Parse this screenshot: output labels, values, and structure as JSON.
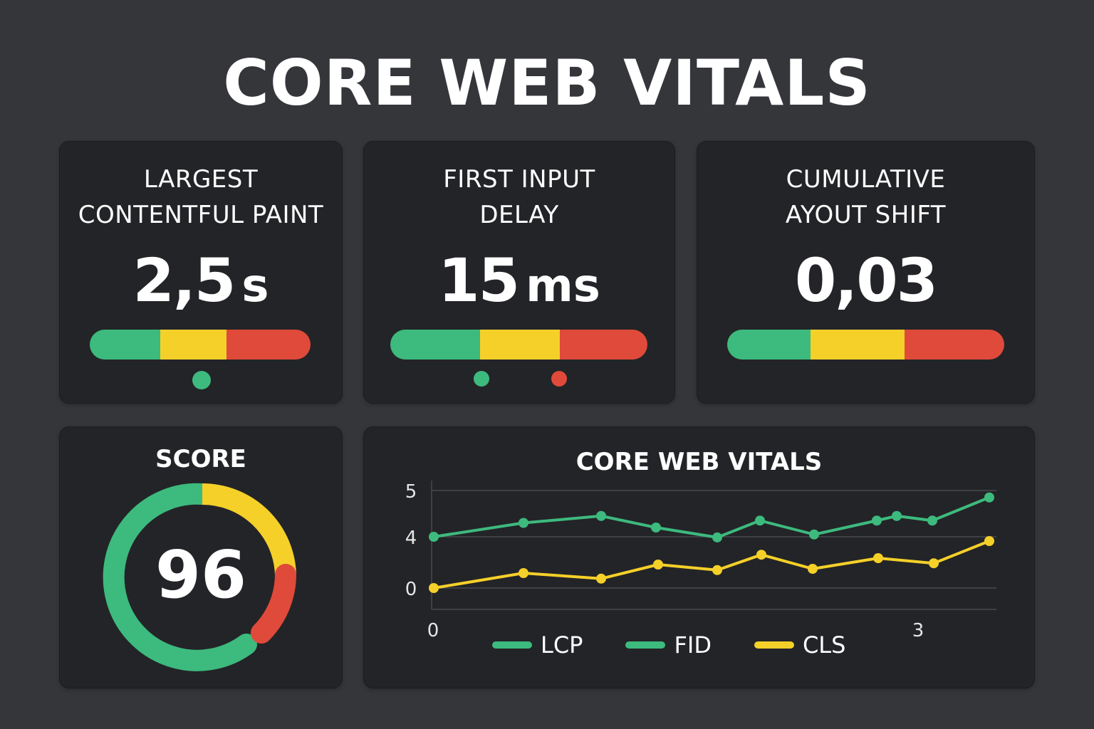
{
  "title": "CORE WEB VITALS",
  "colors": {
    "good": "#3dba7e",
    "needs_improvement": "#f5d029",
    "poor": "#e04a3a",
    "card": "#232427",
    "background": "#34363a"
  },
  "metrics": [
    {
      "title_line1": "LARGEST",
      "title_line2": "CONTENTFUL PAINT",
      "value": "2,5",
      "unit": "s",
      "dots": [
        "good"
      ]
    },
    {
      "title_line1": "FIRST INPUT",
      "title_line2": "DELAY",
      "value": "15",
      "unit": "ms",
      "dots": [
        "good",
        "poor"
      ]
    },
    {
      "title_line1": "CUMULATIVE",
      "title_line2": "AYOUT SHIFT",
      "value": "0,03",
      "unit": "",
      "dots": []
    }
  ],
  "score": {
    "title": "SCORE",
    "value": "96"
  },
  "chart": {
    "title": "CORE WEB VITALS",
    "legend": [
      "LCP",
      "FID",
      "CLS"
    ]
  },
  "chart_data": {
    "type": "line",
    "title": "CORE WEB VITALS",
    "y_tick_labels": [
      "5",
      "4",
      "0"
    ],
    "x_tick_labels": [
      "0",
      "3"
    ],
    "grid": true,
    "legend_placement": "bottom",
    "series": [
      {
        "name": "LCP",
        "color": "#3dba7e",
        "values": [
          4.0,
          4.3,
          4.45,
          4.2,
          3.95,
          4.35,
          4.05,
          4.35,
          4.45,
          4.35,
          4.85
        ]
      },
      {
        "name": "CLS",
        "color": "#f5d029",
        "values": [
          0.0,
          0.35,
          0.22,
          0.55,
          0.42,
          0.78,
          0.45,
          0.7,
          0.58,
          1.1
        ]
      }
    ]
  }
}
